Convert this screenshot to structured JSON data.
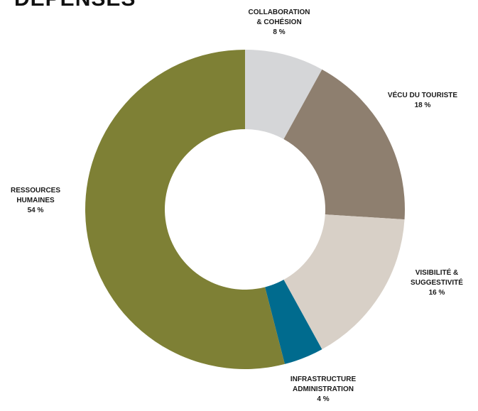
{
  "chart_data": {
    "type": "pie",
    "title": "DÉPENSES",
    "categories": [
      "COLLABORATION & COHÉSION",
      "VÉCU DU TOURISTE",
      "VISIBILITÉ & SUGGESTIVITÉ",
      "INFRASTRUCTURE ADMINISTRATION",
      "RESSOURCES HUMAINES"
    ],
    "values": [
      8,
      18,
      16,
      4,
      54
    ],
    "colors": [
      "#d5d6d8",
      "#8e7f6f",
      "#d8d0c7",
      "#006b8e",
      "#7e8035"
    ],
    "donut": true,
    "labels": [
      {
        "lines": [
          "COLLABORATION",
          "& COHÉSION"
        ],
        "pct": "8 %"
      },
      {
        "lines": [
          "VÉCU DU TOURISTE"
        ],
        "pct": "18 %"
      },
      {
        "lines": [
          "VISIBILITÉ &",
          "SUGGESTIVITÉ"
        ],
        "pct": "16 %"
      },
      {
        "lines": [
          "INFRASTRUCTURE",
          "ADMINISTRATION"
        ],
        "pct": "4 %"
      },
      {
        "lines": [
          "RESSOURCES",
          "HUMAINES"
        ],
        "pct": "54 %"
      }
    ]
  }
}
